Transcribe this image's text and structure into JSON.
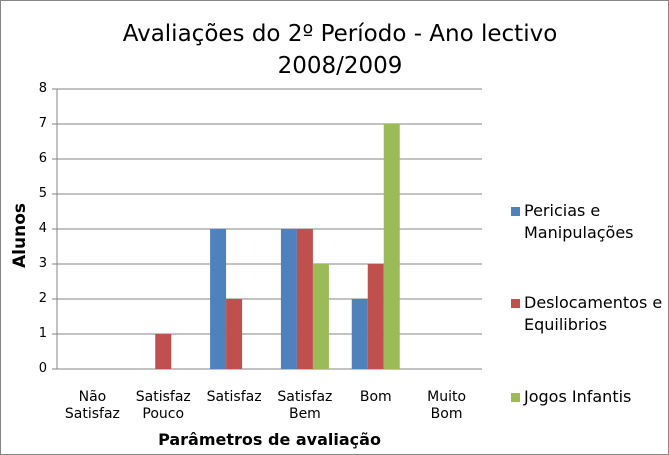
{
  "chart_data": {
    "type": "bar",
    "title": "Avaliações do 2º Período - Ano lectivo 2008/2009",
    "x_label": "Parâmetros de avaliação",
    "y_label": "Alunos",
    "categories": [
      "Não Satisfaz",
      "Satisfaz Pouco",
      "Satisfaz",
      "Satisfaz Bem",
      "Bom",
      "Muito Bom"
    ],
    "series": [
      {
        "name": "Pericias e Manipulações",
        "color": "#4f81bd",
        "values": [
          0,
          0,
          4,
          4,
          2,
          0
        ]
      },
      {
        "name": "Deslocamentos e Equilibrios",
        "color": "#c0504d",
        "values": [
          0,
          1,
          2,
          4,
          3,
          0
        ]
      },
      {
        "name": "Jogos Infantis",
        "color": "#9bbb59",
        "values": [
          0,
          0,
          0,
          3,
          7,
          0
        ]
      }
    ],
    "ylim": [
      0,
      8
    ],
    "yticks": [
      0,
      1,
      2,
      3,
      4,
      5,
      6,
      7,
      8
    ],
    "grid": true,
    "legend": "right"
  }
}
